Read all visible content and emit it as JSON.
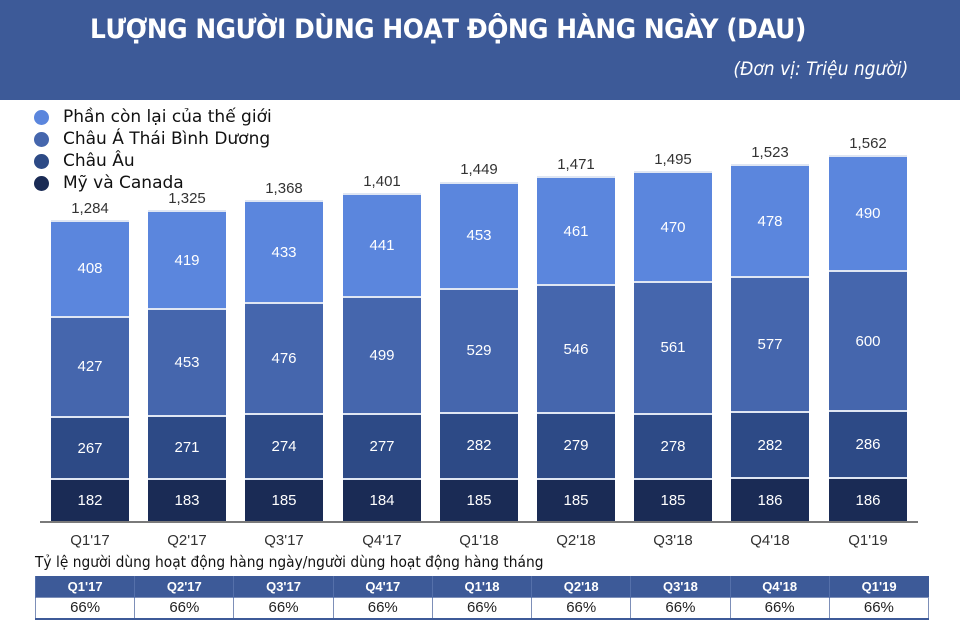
{
  "header": {
    "title": "LƯỢNG NGƯỜI DÙNG HOẠT ĐỘNG HÀNG NGÀY (DAU)",
    "unit": "(Đơn vị: Triệu người)"
  },
  "legend": [
    {
      "label": "Phần còn lại của thế giới",
      "color": "#5b86dd"
    },
    {
      "label": "Châu Á Thái Bình Dương",
      "color": "#4566ad"
    },
    {
      "label": "Châu Âu",
      "color": "#2d4a86"
    },
    {
      "label": "Mỹ và Canada",
      "color": "#1a2b55"
    }
  ],
  "chart_data": {
    "type": "bar",
    "stacked": true,
    "title": "LƯỢNG NGƯỜI DÙNG HOẠT ĐỘNG HÀNG NGÀY (DAU)",
    "subtitle": "(Đơn vị: Triệu người)",
    "xlabel": "",
    "ylabel": "",
    "grid": false,
    "legend_position": "top-left",
    "categories": [
      "Q1'17",
      "Q2'17",
      "Q3'17",
      "Q4'17",
      "Q1'18",
      "Q2'18",
      "Q3'18",
      "Q4'18",
      "Q1'19"
    ],
    "series": [
      {
        "name": "Mỹ và Canada",
        "color": "#1a2b55",
        "values": [
          182,
          183,
          185,
          184,
          185,
          185,
          185,
          186,
          186
        ]
      },
      {
        "name": "Châu Âu",
        "color": "#2d4a86",
        "values": [
          267,
          271,
          274,
          277,
          282,
          279,
          278,
          282,
          286
        ]
      },
      {
        "name": "Châu Á Thái Bình Dương",
        "color": "#4566ad",
        "values": [
          427,
          453,
          476,
          499,
          529,
          546,
          561,
          577,
          600
        ]
      },
      {
        "name": "Phần còn lại của thế giới",
        "color": "#5b86dd",
        "values": [
          408,
          419,
          433,
          441,
          453,
          461,
          470,
          478,
          490
        ]
      }
    ],
    "totals": [
      "1,284",
      "1,325",
      "1,368",
      "1,401",
      "1,449",
      "1,471",
      "1,495",
      "1,523",
      "1,562"
    ],
    "totals_numeric": [
      1284,
      1325,
      1368,
      1401,
      1449,
      1471,
      1495,
      1523,
      1562
    ],
    "ylim": [
      0,
      1600
    ]
  },
  "ratio_table": {
    "title": "Tỷ lệ người dùng hoạt động hàng ngày/người dùng hoạt động hàng tháng",
    "headers": [
      "Q1'17",
      "Q2'17",
      "Q3'17",
      "Q4'17",
      "Q1'18",
      "Q2'18",
      "Q3'18",
      "Q4'18",
      "Q1'19"
    ],
    "values": [
      "66%",
      "66%",
      "66%",
      "66%",
      "66%",
      "66%",
      "66%",
      "66%",
      "66%"
    ]
  }
}
